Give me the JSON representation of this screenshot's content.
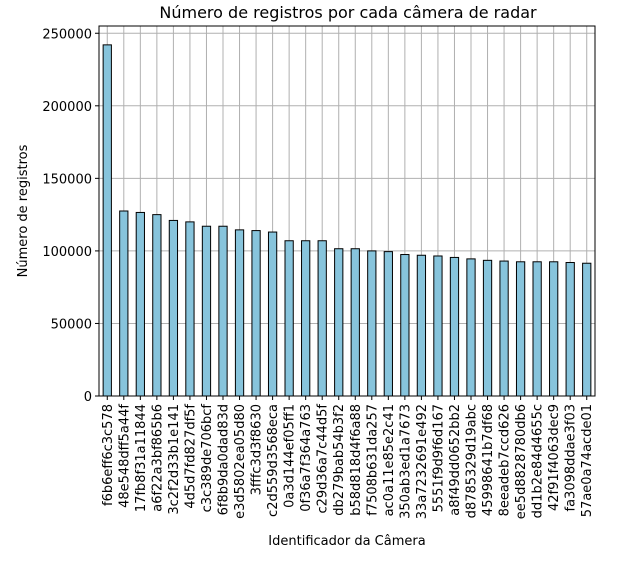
{
  "chart_data": {
    "type": "bar",
    "title": "Número de registros por cada câmera de radar",
    "xlabel": "Identificador da Câmera",
    "ylabel": "Número de registros",
    "ylim": [
      0,
      255000
    ],
    "yticks": [
      0,
      50000,
      100000,
      150000,
      200000,
      250000
    ],
    "grid": true,
    "bar_color": "#87c4dc",
    "edge_color": "#000000",
    "grid_color": "#b0b0b0",
    "categories": [
      "f6b6eff6c3c578",
      "48e548dff5a44f",
      "17fb8f31a11844",
      "a6f22a3bf865b6",
      "3c2f2d33b1e141",
      "4d5d7fd827df5f",
      "c3c389de706bcf",
      "6f8b9da0dad83d",
      "e3d5802ea05d80",
      "3fffc3d3f8630",
      "c2d559d3568eca",
      "0a3d144ef05ff1",
      "0f36a7f364a763",
      "c29d36a7c44d5f",
      "db279bab54b3f2",
      "b58d818d4f6a88",
      "f7508b631da257",
      "ac0a11e85e2c41",
      "350ab3ed1a7673",
      "33a7232691e492",
      "5551f9d9f6d167",
      "a8f49dd0652bb2",
      "d8785329d19abc",
      "45998641b7df68",
      "8eeadeb7ccd626",
      "ee5d8828780db6",
      "dd1b2e84d4655c",
      "42f91f4063dec9",
      "fa3098ddae3f03",
      "57ae0a74acde01"
    ],
    "values": [
      242000,
      127500,
      126500,
      125000,
      121000,
      120000,
      117000,
      117000,
      114500,
      114000,
      113000,
      107000,
      107000,
      107000,
      101500,
      101500,
      100000,
      99500,
      97500,
      97000,
      96500,
      95500,
      94500,
      93500,
      93000,
      92500,
      92500,
      92500,
      92000,
      91500
    ]
  }
}
